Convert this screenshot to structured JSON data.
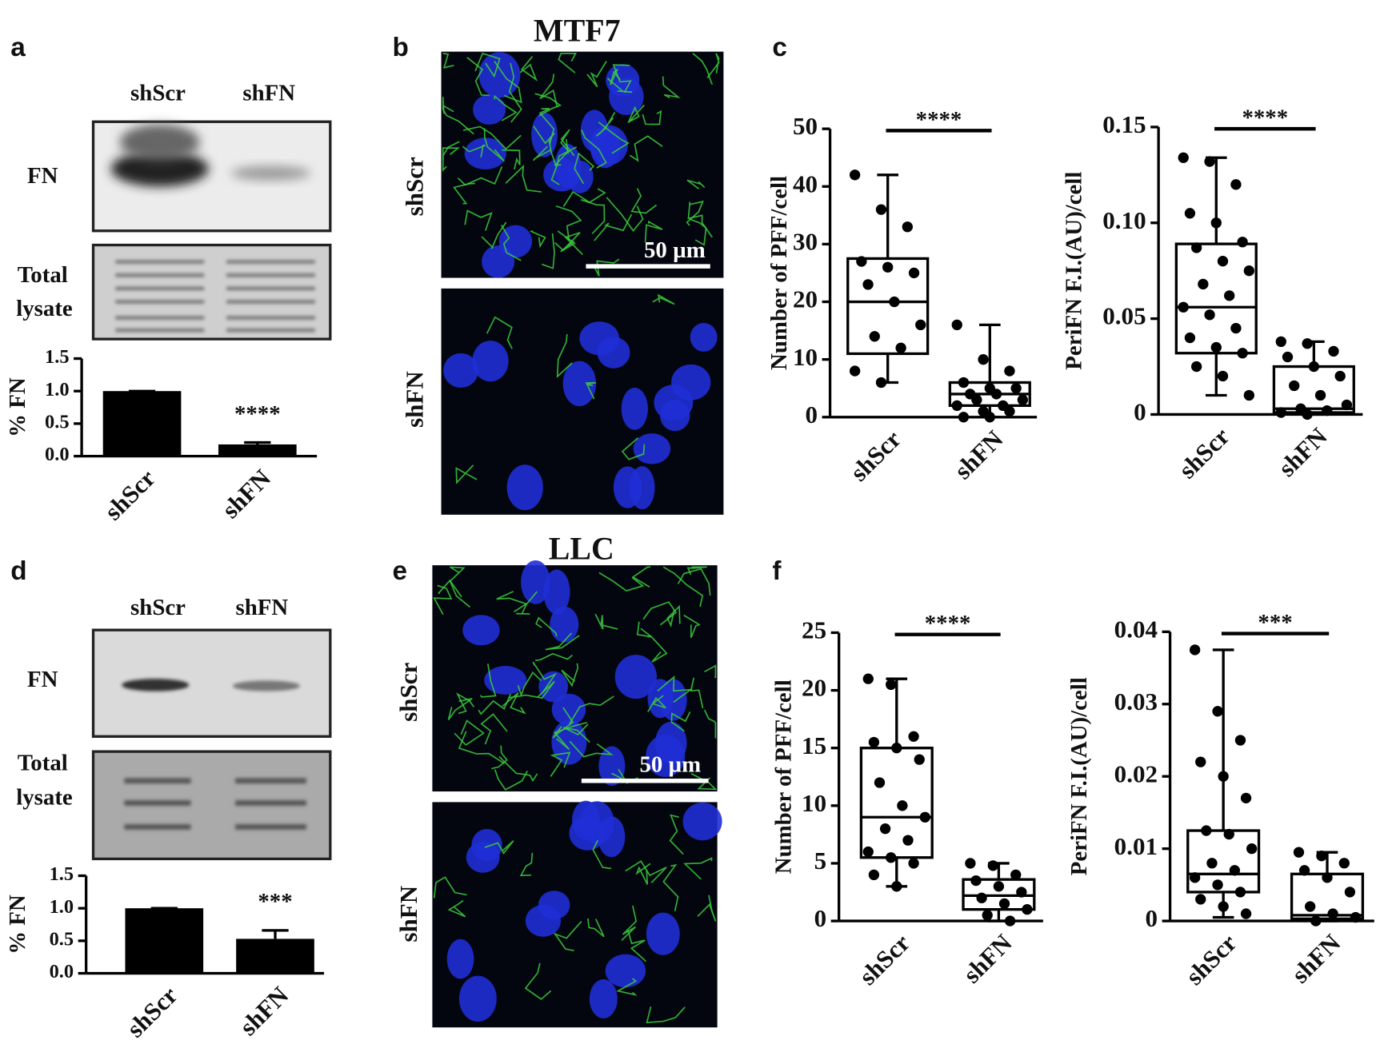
{
  "panel_labels": [
    "a",
    "b",
    "c",
    "d",
    "e",
    "f"
  ],
  "blots": [
    {
      "lanes": [
        "shScr",
        "shFN"
      ],
      "fn_label": "FN",
      "total_label": [
        "Total",
        "lysate"
      ]
    },
    {
      "lanes": [
        "shScr",
        "shFN"
      ],
      "fn_label": "FN",
      "total_label": [
        "Total",
        "lysate"
      ]
    }
  ],
  "micrographs": [
    {
      "title": "MTF7",
      "rows": [
        "shScr",
        "shFN"
      ],
      "scale_bar": "50 µm"
    },
    {
      "title": "LLC",
      "rows": [
        "shScr",
        "shFN"
      ],
      "scale_bar": "50 µm"
    }
  ],
  "chart_data": [
    {
      "type": "bar",
      "y_label": "% FN",
      "categories": [
        "shScr",
        "shFN"
      ],
      "values": [
        1.0,
        0.18
      ],
      "errors": [
        0,
        0.03
      ],
      "color": "#000000",
      "ylim": [
        0,
        1.5
      ],
      "yticks": [
        {
          "value": 0,
          "label": "0.0"
        },
        {
          "value": 0.5,
          "label": "0.5"
        },
        {
          "value": 1,
          "label": "1.0"
        },
        {
          "value": 1.5,
          "label": "1.5"
        }
      ],
      "annotation": "****"
    },
    {
      "type": "box",
      "y_label": "Number of PFF/cell",
      "categories": [
        "shScr",
        "shFN"
      ],
      "color": "#000000",
      "boxes": [
        {
          "min": 6,
          "q1": 11,
          "median": 20,
          "q3": 27.5,
          "max": 42,
          "points": [
            42,
            36,
            33,
            27,
            26,
            25,
            23,
            20,
            16,
            14,
            12,
            8,
            6
          ]
        },
        {
          "min": 0,
          "q1": 2,
          "median": 4,
          "q3": 6,
          "max": 16,
          "points": [
            16,
            10,
            8,
            6,
            5,
            5,
            4,
            4,
            3,
            3,
            2,
            2,
            1,
            1,
            0,
            0
          ]
        }
      ],
      "ylim": [
        0,
        50
      ],
      "yticks": [
        0,
        10,
        20,
        30,
        40,
        50
      ],
      "annotation": "****"
    },
    {
      "type": "box",
      "y_label": "PeriFN F.I.(AU)/cell",
      "categories": [
        "shScr",
        "shFN"
      ],
      "color": "#000000",
      "boxes": [
        {
          "min": 0.01,
          "q1": 0.032,
          "median": 0.056,
          "q3": 0.089,
          "max": 0.134,
          "points": [
            0.134,
            0.132,
            0.12,
            0.105,
            0.1,
            0.09,
            0.087,
            0.08,
            0.075,
            0.068,
            0.062,
            0.056,
            0.052,
            0.045,
            0.04,
            0.035,
            0.032,
            0.025,
            0.02,
            0.01
          ]
        },
        {
          "min": 0,
          "q1": 0.001,
          "median": 0.003,
          "q3": 0.025,
          "max": 0.038,
          "points": [
            0.038,
            0.037,
            0.033,
            0.03,
            0.025,
            0.02,
            0.015,
            0.01,
            0.005,
            0.003,
            0.002,
            0.001,
            0
          ]
        }
      ],
      "ylim": [
        0,
        0.15
      ],
      "yticks": [
        0,
        0.05,
        {
          "value": 0.1,
          "label": "0.10"
        },
        0.15
      ],
      "annotation": "****"
    },
    {
      "type": "bar",
      "y_label": "% FN",
      "categories": [
        "shScr",
        "shFN"
      ],
      "values": [
        1.0,
        0.53
      ],
      "errors": [
        0,
        0.13
      ],
      "color": "#000000",
      "ylim": [
        0,
        1.5
      ],
      "yticks": [
        {
          "value": 0,
          "label": "0.0"
        },
        {
          "value": 0.5,
          "label": "0.5"
        },
        {
          "value": 1,
          "label": "1.0"
        },
        {
          "value": 1.5,
          "label": "1.5"
        }
      ],
      "annotation": "***"
    },
    {
      "type": "box",
      "y_label": "Number of PFF/cell",
      "categories": [
        "shScr",
        "shFN"
      ],
      "color": "#000000",
      "boxes": [
        {
          "min": 3,
          "q1": 5.5,
          "median": 9,
          "q3": 15,
          "max": 21,
          "points": [
            21,
            20.5,
            16,
            15.5,
            15,
            14,
            12,
            10,
            9,
            8,
            7,
            6,
            5.5,
            5,
            4,
            3
          ]
        },
        {
          "min": 0,
          "q1": 1,
          "median": 2.2,
          "q3": 3.6,
          "max": 5,
          "points": [
            5,
            4.8,
            4,
            3.5,
            3,
            2.5,
            2,
            1.5,
            1,
            0.5,
            0
          ]
        }
      ],
      "ylim": [
        0,
        25
      ],
      "yticks": [
        0,
        5,
        10,
        15,
        20,
        25
      ],
      "annotation": "****"
    },
    {
      "type": "box",
      "y_label": "PeriFN F.I.(AU)/cell",
      "categories": [
        "shScr",
        "shFN"
      ],
      "color": "#000000",
      "boxes": [
        {
          "min": 0.0005,
          "q1": 0.004,
          "median": 0.0065,
          "q3": 0.0125,
          "max": 0.0375,
          "points": [
            0.0375,
            0.029,
            0.025,
            0.022,
            0.02,
            0.017,
            0.0125,
            0.012,
            0.01,
            0.008,
            0.007,
            0.006,
            0.005,
            0.004,
            0.003,
            0.002,
            0.001
          ]
        },
        {
          "min": 0,
          "q1": 0.0003,
          "median": 0.0008,
          "q3": 0.0065,
          "max": 0.0095,
          "points": [
            0.0095,
            0.009,
            0.008,
            0.007,
            0.006,
            0.004,
            0.002,
            0.001,
            0.0005,
            0
          ]
        }
      ],
      "ylim": [
        0,
        0.04
      ],
      "yticks": [
        0,
        0.01,
        0.02,
        0.03,
        0.04
      ],
      "annotation": "***"
    }
  ]
}
